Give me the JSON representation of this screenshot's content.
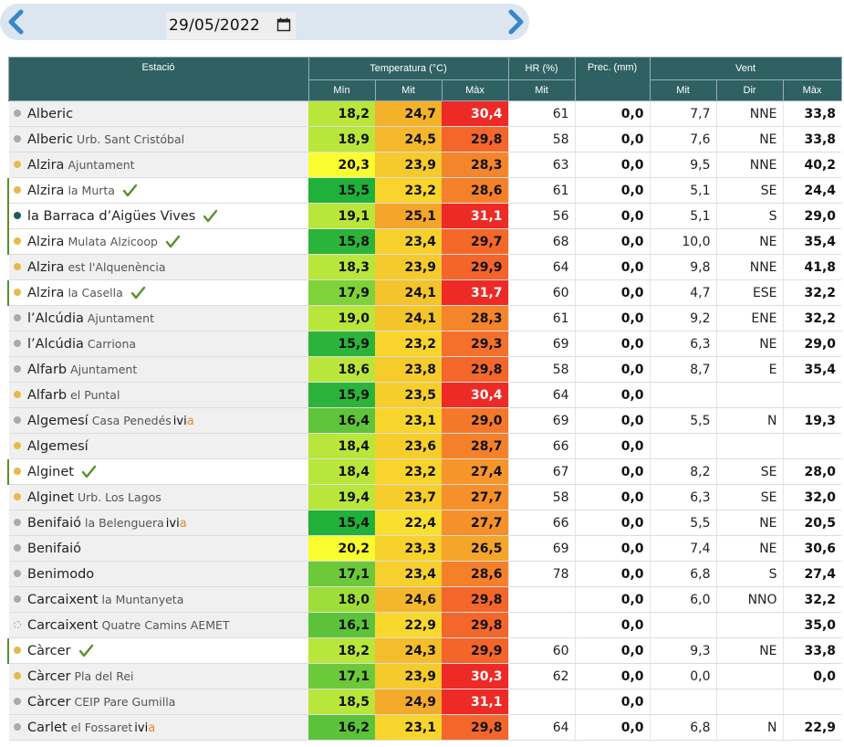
{
  "date_nav": {
    "date_value": "29/05/2022",
    "prev_icon": "chevron-left-icon",
    "next_icon": "chevron-right-icon",
    "calendar_icon": "calendar-icon"
  },
  "colors": {
    "header_bg": "#2f6163",
    "dot_yellow": "#e8b84a",
    "dot_gray": "#aaaaaa",
    "dot_teal": "#1e5a58",
    "check_green": "#5a8f2a",
    "ivia_a": "#e08a2a"
  },
  "headers": {
    "station": "Estació",
    "temperature": "Temperatura (°C)",
    "humidity": "HR (%)",
    "precip": "Prec. (mm)",
    "wind": "Vent",
    "t_min": "Mín",
    "t_mit": "Mit",
    "t_max": "Màx",
    "hr_mit": "Mit",
    "w_mit": "Mit",
    "w_dir": "Dir",
    "w_max": "Màx"
  },
  "rows": [
    {
      "name": "Alberic",
      "sub": "",
      "dot": "gray",
      "check": false,
      "ivia": false,
      "tmin": "18,2",
      "tmit": "24,7",
      "tmax": "30,4",
      "hr": "61",
      "prec": "0,0",
      "wmit": "7,7",
      "wdir": "NNE",
      "wmax": "33,8",
      "cmin": "#b9e63a",
      "cmit": "#f4b12a",
      "cmax": "#ee2a26"
    },
    {
      "name": "Alberic",
      "sub": "Urb. Sant Cristóbal",
      "dot": "gray",
      "check": false,
      "ivia": false,
      "tmin": "18,9",
      "tmit": "24,5",
      "tmax": "29,8",
      "hr": "58",
      "prec": "0,0",
      "wmit": "7,6",
      "wdir": "NE",
      "wmax": "33,8",
      "cmin": "#b9e63a",
      "cmit": "#f5b82c",
      "cmax": "#f5662a"
    },
    {
      "name": "Alzira",
      "sub": "Ajuntament",
      "dot": "yellow",
      "check": false,
      "ivia": false,
      "tmin": "20,3",
      "tmit": "23,9",
      "tmax": "28,3",
      "hr": "63",
      "prec": "0,0",
      "wmit": "9,5",
      "wdir": "NNE",
      "wmax": "40,2",
      "cmin": "#f9fd30",
      "cmit": "#f5ca2c",
      "cmax": "#f5852a"
    },
    {
      "name": "Alzira",
      "sub": "la Murta",
      "dot": "yellow",
      "check": true,
      "ivia": false,
      "tmin": "15,5",
      "tmit": "23,2",
      "tmax": "28,6",
      "hr": "61",
      "prec": "0,0",
      "wmit": "5,1",
      "wdir": "SE",
      "wmax": "24,4",
      "cmin": "#1fb13a",
      "cmit": "#f8d42c",
      "cmax": "#f5802a"
    },
    {
      "name": "la Barraca d’Aigües Vives",
      "sub": "",
      "dot": "teal",
      "check": true,
      "ivia": false,
      "tmin": "19,1",
      "tmit": "25,1",
      "tmax": "31,1",
      "hr": "56",
      "prec": "0,0",
      "wmit": "5,1",
      "wdir": "S",
      "wmax": "29,0",
      "cmin": "#b9e63a",
      "cmit": "#f4a52a",
      "cmax": "#ee2a26"
    },
    {
      "name": "Alzira",
      "sub": "Mulata Alzicoop",
      "dot": "yellow",
      "check": true,
      "ivia": false,
      "tmin": "15,8",
      "tmit": "23,4",
      "tmax": "29,7",
      "hr": "68",
      "prec": "0,0",
      "wmit": "10,0",
      "wdir": "NE",
      "wmax": "35,4",
      "cmin": "#2cb43a",
      "cmit": "#f6d02c",
      "cmax": "#f5682a"
    },
    {
      "name": "Alzira",
      "sub": "est l'Alquenència",
      "dot": "yellow",
      "check": false,
      "ivia": false,
      "tmin": "18,3",
      "tmit": "23,9",
      "tmax": "29,9",
      "hr": "64",
      "prec": "0,0",
      "wmit": "9,8",
      "wdir": "NNE",
      "wmax": "41,8",
      "cmin": "#b9e63a",
      "cmit": "#f5ca2c",
      "cmax": "#f5642a"
    },
    {
      "name": "Alzira",
      "sub": "la Casella",
      "dot": "yellow",
      "check": true,
      "ivia": false,
      "tmin": "17,9",
      "tmit": "24,1",
      "tmax": "31,7",
      "hr": "60",
      "prec": "0,0",
      "wmit": "4,7",
      "wdir": "ESE",
      "wmax": "32,2",
      "cmin": "#7fd23a",
      "cmit": "#f4c42c",
      "cmax": "#ee2a26"
    },
    {
      "name": "l’Alcúdia",
      "sub": "Ajuntament",
      "dot": "gray",
      "check": false,
      "ivia": false,
      "tmin": "19,0",
      "tmit": "24,1",
      "tmax": "28,3",
      "hr": "61",
      "prec": "0,0",
      "wmit": "9,2",
      "wdir": "ENE",
      "wmax": "32,2",
      "cmin": "#b9e63a",
      "cmit": "#f4c42c",
      "cmax": "#f5852a"
    },
    {
      "name": "l’Alcúdia",
      "sub": "Carriona",
      "dot": "gray",
      "check": false,
      "ivia": false,
      "tmin": "15,9",
      "tmit": "23,2",
      "tmax": "29,3",
      "hr": "69",
      "prec": "0,0",
      "wmit": "6,3",
      "wdir": "NE",
      "wmax": "29,0",
      "cmin": "#2cb43a",
      "cmit": "#f8d42c",
      "cmax": "#f5702a"
    },
    {
      "name": "Alfarb",
      "sub": "Ajuntament",
      "dot": "gray",
      "check": false,
      "ivia": false,
      "tmin": "18,6",
      "tmit": "23,8",
      "tmax": "29,8",
      "hr": "58",
      "prec": "0,0",
      "wmit": "8,7",
      "wdir": "E",
      "wmax": "35,4",
      "cmin": "#b9e63a",
      "cmit": "#f5cc2c",
      "cmax": "#f5662a"
    },
    {
      "name": "Alfarb",
      "sub": "el Puntal",
      "dot": "yellow",
      "check": false,
      "ivia": false,
      "tmin": "15,9",
      "tmit": "23,5",
      "tmax": "30,4",
      "hr": "64",
      "prec": "0,0",
      "wmit": "",
      "wdir": "",
      "wmax": "",
      "cmin": "#2cb43a",
      "cmit": "#f6ce2c",
      "cmax": "#ee2a26"
    },
    {
      "name": "Algemesí",
      "sub": "Casa Penedés",
      "dot": "gray",
      "check": false,
      "ivia": true,
      "tmin": "16,4",
      "tmit": "23,1",
      "tmax": "29,0",
      "hr": "69",
      "prec": "0,0",
      "wmit": "5,5",
      "wdir": "N",
      "wmax": "19,3",
      "cmin": "#60c43a",
      "cmit": "#f8d52c",
      "cmax": "#f5782a"
    },
    {
      "name": "Algemesí",
      "sub": "",
      "dot": "yellow",
      "check": false,
      "ivia": false,
      "tmin": "18,4",
      "tmit": "23,6",
      "tmax": "28,7",
      "hr": "66",
      "prec": "0,0",
      "wmit": "",
      "wdir": "",
      "wmax": "",
      "cmin": "#b9e63a",
      "cmit": "#f6ce2c",
      "cmax": "#f5802a"
    },
    {
      "name": "Alginet",
      "sub": "",
      "dot": "yellow",
      "check": true,
      "ivia": false,
      "tmin": "18,4",
      "tmit": "23,2",
      "tmax": "27,4",
      "hr": "67",
      "prec": "0,0",
      "wmit": "8,2",
      "wdir": "SE",
      "wmax": "28,0",
      "cmin": "#b9e63a",
      "cmit": "#f8d42c",
      "cmax": "#f5952a"
    },
    {
      "name": "Alginet",
      "sub": "Urb. Los Lagos",
      "dot": "yellow",
      "check": false,
      "ivia": false,
      "tmin": "19,4",
      "tmit": "23,7",
      "tmax": "27,7",
      "hr": "58",
      "prec": "0,0",
      "wmit": "6,3",
      "wdir": "SE",
      "wmax": "32,0",
      "cmin": "#b9e63a",
      "cmit": "#f6cd2c",
      "cmax": "#f5902a"
    },
    {
      "name": "Benifaió",
      "sub": "la Belenguera",
      "dot": "gray",
      "check": false,
      "ivia": true,
      "tmin": "15,4",
      "tmit": "22,4",
      "tmax": "27,7",
      "hr": "66",
      "prec": "0,0",
      "wmit": "5,5",
      "wdir": "NE",
      "wmax": "20,5",
      "cmin": "#1fb13a",
      "cmit": "#f9df2e",
      "cmax": "#f5902a"
    },
    {
      "name": "Benifaió",
      "sub": "",
      "dot": "gray",
      "check": false,
      "ivia": false,
      "tmin": "20,2",
      "tmit": "23,3",
      "tmax": "26,5",
      "hr": "69",
      "prec": "0,0",
      "wmit": "7,4",
      "wdir": "NE",
      "wmax": "30,6",
      "cmin": "#f9fd30",
      "cmit": "#f7d22c",
      "cmax": "#f5a52a"
    },
    {
      "name": "Benimodo",
      "sub": "",
      "dot": "gray",
      "check": false,
      "ivia": false,
      "tmin": "17,1",
      "tmit": "23,4",
      "tmax": "28,6",
      "hr": "78",
      "prec": "0,0",
      "wmit": "6,8",
      "wdir": "S",
      "wmax": "27,4",
      "cmin": "#6cca3a",
      "cmit": "#f6d02c",
      "cmax": "#f5802a"
    },
    {
      "name": "Carcaixent",
      "sub": "la Muntanyeta",
      "dot": "gray",
      "check": false,
      "ivia": false,
      "tmin": "18,0",
      "tmit": "24,6",
      "tmax": "29,8",
      "hr": "",
      "prec": "0,0",
      "wmit": "6,0",
      "wdir": "NNO",
      "wmax": "32,2",
      "cmin": "#9ede3a",
      "cmit": "#f4b62c",
      "cmax": "#f5662a"
    },
    {
      "name": "Carcaixent",
      "sub": "Quatre Camins AEMET",
      "dot": "hollow",
      "check": false,
      "ivia": false,
      "tmin": "16,1",
      "tmit": "22,9",
      "tmax": "29,8",
      "hr": "",
      "prec": "0,0",
      "wmit": "",
      "wdir": "",
      "wmax": "35,0",
      "cmin": "#5cc23a",
      "cmit": "#f8d82c",
      "cmax": "#f5662a"
    },
    {
      "name": "Càrcer",
      "sub": "",
      "dot": "yellow",
      "check": true,
      "ivia": false,
      "tmin": "18,2",
      "tmit": "24,3",
      "tmax": "29,9",
      "hr": "60",
      "prec": "0,0",
      "wmit": "9,3",
      "wdir": "NE",
      "wmax": "33,8",
      "cmin": "#b9e63a",
      "cmit": "#f4bd2c",
      "cmax": "#f5642a"
    },
    {
      "name": "Càrcer",
      "sub": "Pla del Rei",
      "dot": "yellow",
      "check": false,
      "ivia": false,
      "tmin": "17,1",
      "tmit": "23,9",
      "tmax": "30,3",
      "hr": "62",
      "prec": "0,0",
      "wmit": "0,0",
      "wdir": "",
      "wmax": "0,0",
      "cmin": "#6cca3a",
      "cmit": "#f5ca2c",
      "cmax": "#ee2a26"
    },
    {
      "name": "Càrcer",
      "sub": "CEIP Pare Gumilla",
      "dot": "gray",
      "check": false,
      "ivia": false,
      "tmin": "18,5",
      "tmit": "24,9",
      "tmax": "31,1",
      "hr": "",
      "prec": "0,0",
      "wmit": "",
      "wdir": "",
      "wmax": "",
      "cmin": "#b9e63a",
      "cmit": "#f4aa2a",
      "cmax": "#ee2a26"
    },
    {
      "name": "Carlet",
      "sub": "el Fossaret",
      "dot": "gray",
      "check": false,
      "ivia": true,
      "tmin": "16,2",
      "tmit": "23,1",
      "tmax": "29,8",
      "hr": "64",
      "prec": "0,0",
      "wmit": "6,8",
      "wdir": "N",
      "wmax": "22,9",
      "cmin": "#5cc23a",
      "cmit": "#f8d52c",
      "cmax": "#f5662a"
    }
  ]
}
